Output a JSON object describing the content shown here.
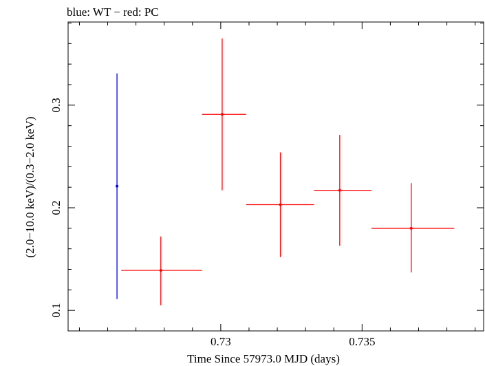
{
  "chart_data": {
    "type": "scatter",
    "title": "blue: WT − red: PC",
    "xlabel": "Time Since 57973.0 MJD (days)",
    "ylabel": "(2.0−10.0 keV)/(0.3−2.0 keV)",
    "xlim": [
      0.7246,
      0.7393
    ],
    "ylim": [
      0.08,
      0.381
    ],
    "x_ticks": [
      {
        "value": 0.73,
        "label": "0.73"
      },
      {
        "value": 0.735,
        "label": "0.735"
      }
    ],
    "y_ticks": [
      {
        "value": 0.1,
        "label": "0.1"
      },
      {
        "value": 0.2,
        "label": "0.2"
      },
      {
        "value": 0.3,
        "label": "0.3"
      }
    ],
    "grid": false,
    "series": [
      {
        "name": "WT",
        "color": "#0000ff",
        "points": [
          {
            "x": 0.72633,
            "xlo": 0.72633,
            "xhi": 0.72633,
            "y": 0.221,
            "ylo": 0.111,
            "yhi": 0.331
          }
        ]
      },
      {
        "name": "PC",
        "color": "#ff0000",
        "points": [
          {
            "x": 0.72788,
            "xlo": 0.72648,
            "xhi": 0.72934,
            "y": 0.139,
            "ylo": 0.105,
            "yhi": 0.172
          },
          {
            "x": 0.73005,
            "xlo": 0.72934,
            "xhi": 0.7309,
            "y": 0.291,
            "ylo": 0.217,
            "yhi": 0.365
          },
          {
            "x": 0.73211,
            "xlo": 0.7309,
            "xhi": 0.7333,
            "y": 0.203,
            "ylo": 0.152,
            "yhi": 0.254
          },
          {
            "x": 0.73421,
            "xlo": 0.7333,
            "xhi": 0.73533,
            "y": 0.217,
            "ylo": 0.163,
            "yhi": 0.271
          },
          {
            "x": 0.73674,
            "xlo": 0.73533,
            "xhi": 0.73826,
            "y": 0.18,
            "ylo": 0.137,
            "yhi": 0.224
          }
        ]
      }
    ]
  }
}
